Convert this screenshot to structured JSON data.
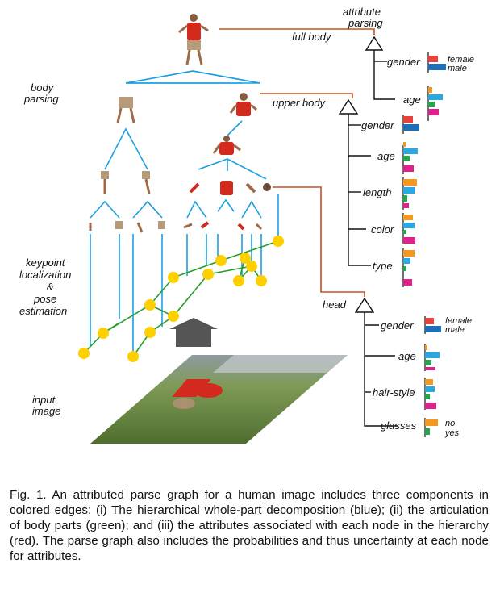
{
  "labels": {
    "attribute_parsing_1": "attribute",
    "attribute_parsing_2": "parsing",
    "full_body": "full body",
    "body_parsing_1": "body",
    "body_parsing_2": "parsing",
    "upper_body": "upper body",
    "keypoint_1": "keypoint",
    "keypoint_2": "localization",
    "keypoint_3": "&",
    "keypoint_4": "pose",
    "keypoint_5": "estimation",
    "head": "head",
    "input_1": "input",
    "input_2": "image"
  },
  "attributes": {
    "full_body": [
      "gender",
      "age"
    ],
    "upper_body": [
      "gender",
      "age",
      "length",
      "color",
      "type"
    ],
    "head": [
      "gender",
      "age",
      "hair-style",
      "glasses"
    ]
  },
  "bar_labels": {
    "female": "female",
    "male": "male",
    "no": "no",
    "yes": "yes"
  },
  "colors": {
    "hierarchy": "#1E9FE0",
    "articulation": "#22A02A",
    "attribute": "#C8501E",
    "keypoint": "#FFD000",
    "bar_red": "#E8403A",
    "bar_blue": "#1C6FB8",
    "bar_orange": "#F39A1E",
    "bar_cyan": "#2AA8E0",
    "bar_green": "#22A84A",
    "bar_magenta": "#E0208C"
  },
  "caption": "Fig. 1. An attributed parse graph for a human image includes three components in colored edges: (i) The hierarchical whole-part decomposition (blue); (ii) the articulation of body parts (green); and (iii) the attributes associated with each node in the hierarchy (red). The parse graph also includes the probabilities and thus uncertainty at each node for attributes."
}
